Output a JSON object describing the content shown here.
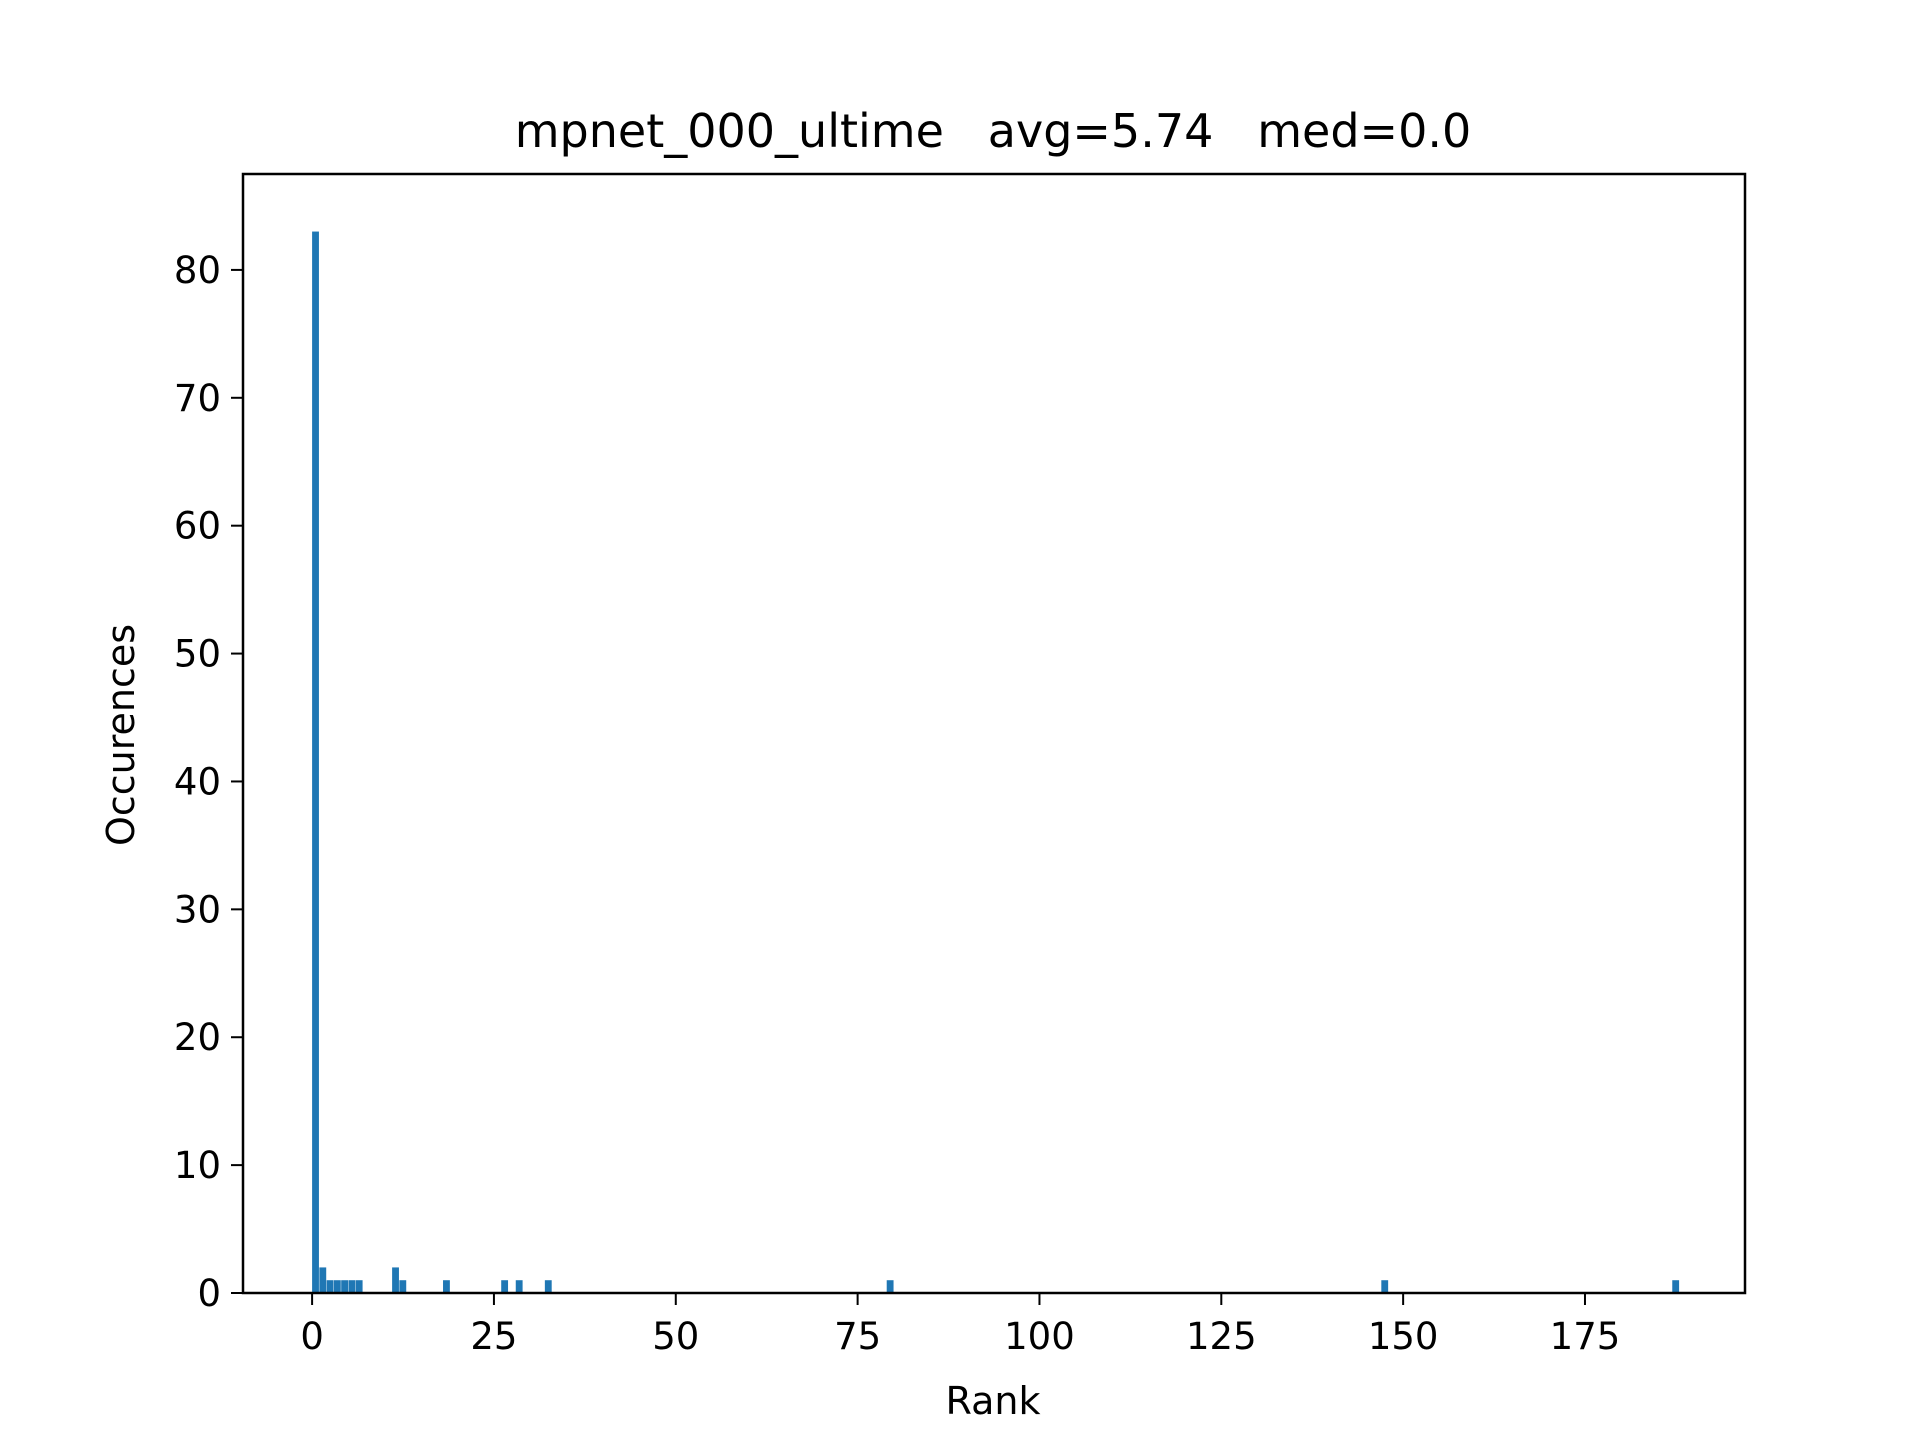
{
  "chart_data": {
    "type": "bar",
    "title": "mpnet_000_ultime   avg=5.74   med=0.0",
    "xlabel": "Rank",
    "ylabel": "Occurences",
    "xlim": [
      -9.5,
      197
    ],
    "ylim": [
      0,
      87.5
    ],
    "xticks": [
      0,
      25,
      50,
      75,
      100,
      125,
      150,
      175
    ],
    "yticks": [
      0,
      10,
      20,
      30,
      40,
      50,
      60,
      70,
      80
    ],
    "bar_width": 0.94,
    "grid": false,
    "color": "#1f77b4",
    "bars": [
      {
        "x": 0,
        "value": 83
      },
      {
        "x": 1,
        "value": 2
      },
      {
        "x": 2,
        "value": 1
      },
      {
        "x": 3,
        "value": 1
      },
      {
        "x": 4,
        "value": 1
      },
      {
        "x": 5,
        "value": 1
      },
      {
        "x": 6,
        "value": 1
      },
      {
        "x": 11,
        "value": 2
      },
      {
        "x": 12,
        "value": 1
      },
      {
        "x": 18,
        "value": 1
      },
      {
        "x": 26,
        "value": 1
      },
      {
        "x": 28,
        "value": 1
      },
      {
        "x": 32,
        "value": 1
      },
      {
        "x": 79,
        "value": 1
      },
      {
        "x": 147,
        "value": 1
      },
      {
        "x": 187,
        "value": 1
      }
    ]
  }
}
